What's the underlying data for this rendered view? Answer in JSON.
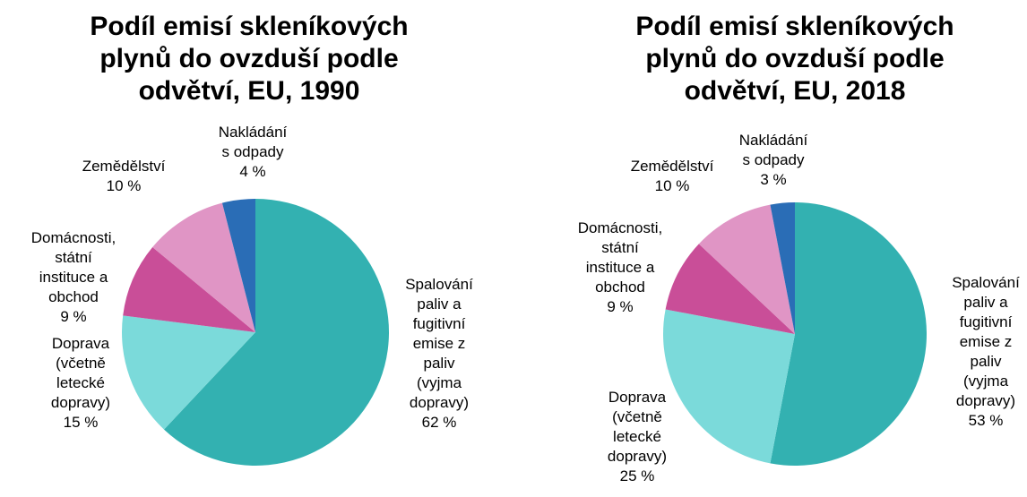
{
  "chart_data": [
    {
      "type": "pie",
      "title": "Podíl emisí skleníkových\nplynů do ovzduší podle\nodvětví, EU, 1990",
      "categories": [
        "Spalování\npaliv a\nfugitivní\nemise z\npaliv\n(vyjma\ndopravy)",
        "Doprava\n(včetně\nletecké\ndopravy)",
        "Domácnosti,\nstátní\ninstituce a\nobchod",
        "Zemědělství",
        "Nakládání\ns odpady"
      ],
      "values": [
        62,
        15,
        9,
        10,
        4
      ],
      "value_labels": [
        "62 %",
        "15 %",
        "9 %",
        "10 %",
        "4 %"
      ],
      "colors": [
        "#33b1b1",
        "#7bdada",
        "#c94e98",
        "#e095c5",
        "#2a6db6"
      ]
    },
    {
      "type": "pie",
      "title": "Podíl emisí skleníkových\nplynů do ovzduší podle\nodvětví, EU, 2018",
      "categories": [
        "Spalování\npaliv a\nfugitivní\nemise z\npaliv\n(vyjma\ndopravy)",
        "Doprava\n(včetně\nletecké\ndopravy)",
        "Domácnosti,\nstátní\ninstituce a\nobchod",
        "Zemědělství",
        "Nakládání\ns odpady"
      ],
      "values": [
        53,
        25,
        9,
        10,
        3
      ],
      "value_labels": [
        "53 %",
        "25 %",
        "9 %",
        "10 %",
        "3 %"
      ],
      "colors": [
        "#33b1b1",
        "#7bdada",
        "#c94e98",
        "#e095c5",
        "#2a6db6"
      ]
    }
  ]
}
